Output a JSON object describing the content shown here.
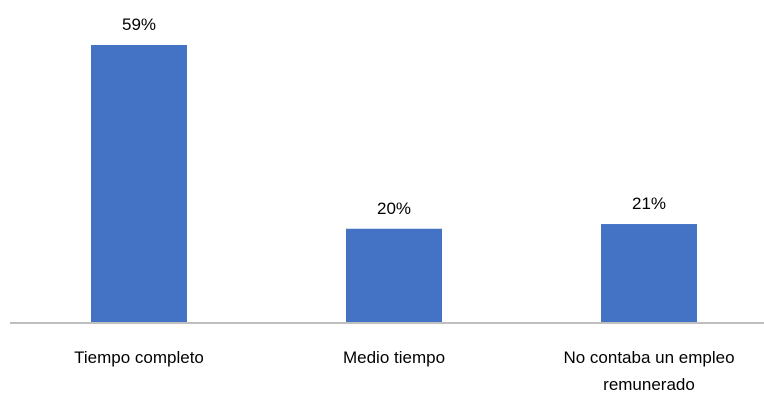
{
  "colors": {
    "bar": "#4472C4",
    "axis": "#BFBFBF",
    "text": "#000000"
  },
  "chart_data": {
    "type": "bar",
    "title": "",
    "xlabel": "",
    "ylabel": "",
    "categories": [
      [
        "Tiempo completo"
      ],
      [
        "Medio tiempo"
      ],
      [
        "No contaba un empleo",
        "remunerado"
      ]
    ],
    "values": [
      59,
      20,
      21
    ],
    "value_labels": [
      "59%",
      "20%",
      "21%"
    ],
    "ylim": [
      0,
      59
    ],
    "grid": false,
    "legend": "none"
  }
}
